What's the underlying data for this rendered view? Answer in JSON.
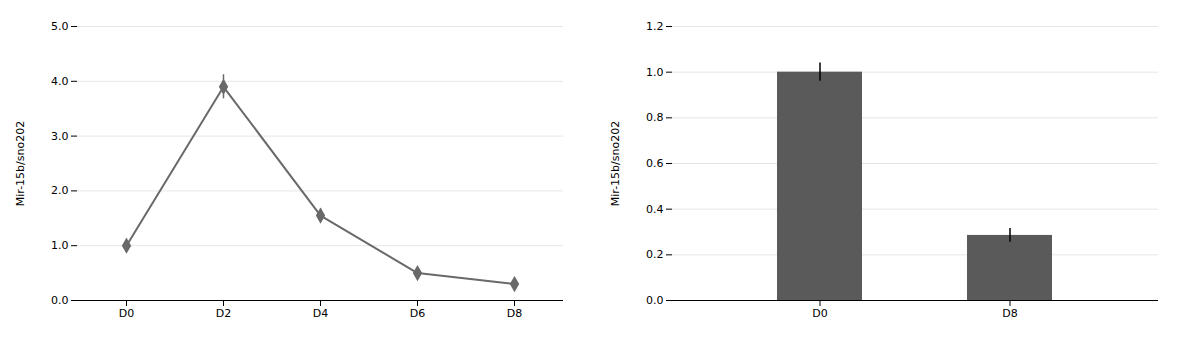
{
  "chart_data": [
    {
      "type": "line",
      "categories": [
        "D0",
        "D2",
        "D4",
        "D6",
        "D8"
      ],
      "values": [
        1.0,
        3.9,
        1.55,
        0.5,
        0.3
      ],
      "yerr": [
        0.0,
        0.22,
        0.12,
        0.05,
        0.0
      ],
      "ylabel": "Mir-15b/sno202",
      "ylim": [
        0.0,
        5.0
      ],
      "yticks": [
        {
          "value": 0,
          "label": "0.0"
        },
        {
          "value": 1,
          "label": "1.0"
        },
        {
          "value": 2,
          "label": "2.0"
        },
        {
          "value": 3,
          "label": "3.0"
        },
        {
          "value": 4,
          "label": "4.0"
        },
        {
          "value": 5,
          "label": "5.0"
        }
      ],
      "color": "#696969",
      "marker": "diamond",
      "grid": true
    },
    {
      "type": "bar",
      "categories": [
        "D0",
        "D8"
      ],
      "values": [
        1.0,
        0.285
      ],
      "yerr": [
        0.04,
        0.03
      ],
      "ylabel": "Mir-15b/sno202",
      "ylim": [
        0.0,
        1.2
      ],
      "yticks": [
        {
          "value": 0,
          "label": "0.0"
        },
        {
          "value": 0.2,
          "label": "0.2"
        },
        {
          "value": 0.4,
          "label": "0.4"
        },
        {
          "value": 0.6,
          "label": "0.6"
        },
        {
          "value": 0.8,
          "label": "0.8"
        },
        {
          "value": 1.0,
          "label": "1.0"
        },
        {
          "value": 1.2,
          "label": "1.2"
        }
      ],
      "color": "#5a5a5a",
      "grid": true
    }
  ]
}
